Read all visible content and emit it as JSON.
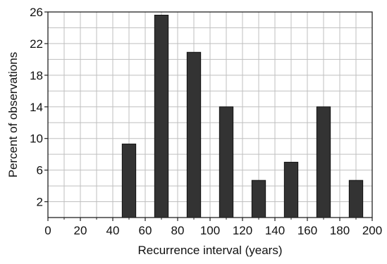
{
  "chart_data": {
    "type": "bar",
    "title": "",
    "xlabel": "Recurrence interval (years)",
    "ylabel": "Percent of observations",
    "xlim": [
      0,
      200
    ],
    "ylim": [
      0,
      26
    ],
    "x_ticks": [
      0,
      20,
      40,
      60,
      80,
      100,
      120,
      140,
      160,
      180,
      200
    ],
    "y_ticks": [
      2,
      6,
      10,
      14,
      18,
      22,
      26
    ],
    "grid": true,
    "bin_width": 20,
    "bar_centers": [
      50,
      70,
      90,
      110,
      130,
      150,
      170,
      190
    ],
    "values": [
      9.3,
      25.6,
      20.9,
      14.0,
      4.7,
      7.0,
      14.0,
      4.7
    ],
    "bar_color": "#333333",
    "grid_color": "#bfbfbf"
  }
}
